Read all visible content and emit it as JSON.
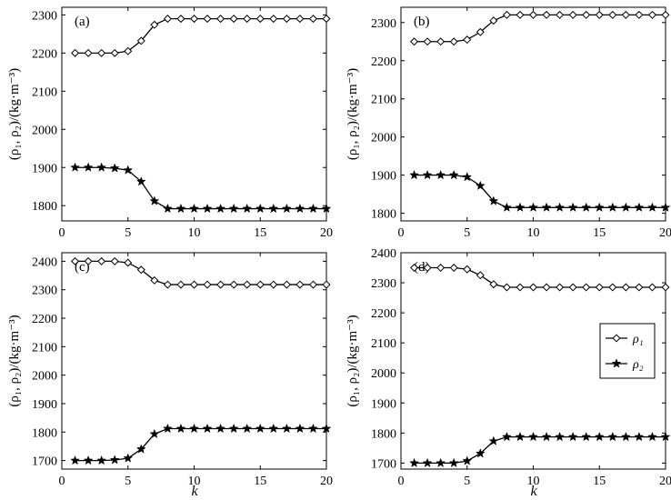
{
  "chart_data": [
    {
      "type": "line",
      "panel_label": "(a)",
      "ylabel": "(ρ₁, ρ₂)/(kg·m⁻³)",
      "xlabel": "",
      "xlim": [
        0,
        20
      ],
      "ylim": [
        1760,
        2320
      ],
      "xticks": [
        0,
        5,
        10,
        15,
        20
      ],
      "yticks": [
        1800,
        1900,
        2000,
        2100,
        2200,
        2300
      ],
      "x": [
        1,
        2,
        3,
        4,
        5,
        6,
        7,
        8,
        9,
        10,
        11,
        12,
        13,
        14,
        15,
        16,
        17,
        18,
        19,
        20
      ],
      "series": [
        {
          "key": "rho1",
          "marker": "diamond",
          "values": [
            2200,
            2200,
            2200,
            2200,
            2205,
            2232,
            2274,
            2290,
            2290,
            2290,
            2290,
            2290,
            2290,
            2290,
            2290,
            2290,
            2290,
            2290,
            2290,
            2290
          ]
        },
        {
          "key": "rho2",
          "marker": "star",
          "values": [
            1900,
            1900,
            1900,
            1898,
            1893,
            1863,
            1812,
            1792,
            1792,
            1792,
            1792,
            1792,
            1792,
            1792,
            1792,
            1792,
            1792,
            1792,
            1792,
            1792
          ]
        }
      ]
    },
    {
      "type": "line",
      "panel_label": "(b)",
      "ylabel": "(ρ₁, ρ₂)/(kg·m⁻³)",
      "xlabel": "",
      "xlim": [
        0,
        20
      ],
      "ylim": [
        1780,
        2340
      ],
      "xticks": [
        0,
        5,
        10,
        15,
        20
      ],
      "yticks": [
        1800,
        1900,
        2000,
        2100,
        2200,
        2300
      ],
      "x": [
        1,
        2,
        3,
        4,
        5,
        6,
        7,
        8,
        9,
        10,
        11,
        12,
        13,
        14,
        15,
        16,
        17,
        18,
        19,
        20
      ],
      "series": [
        {
          "key": "rho1",
          "marker": "diamond",
          "values": [
            2250,
            2250,
            2250,
            2250,
            2255,
            2275,
            2305,
            2320,
            2320,
            2320,
            2320,
            2320,
            2320,
            2320,
            2320,
            2320,
            2320,
            2320,
            2320,
            2320
          ]
        },
        {
          "key": "rho2",
          "marker": "star",
          "values": [
            1900,
            1900,
            1900,
            1900,
            1895,
            1872,
            1832,
            1815,
            1815,
            1815,
            1815,
            1815,
            1815,
            1815,
            1815,
            1815,
            1815,
            1815,
            1815,
            1815
          ]
        }
      ]
    },
    {
      "type": "line",
      "panel_label": "(c)",
      "ylabel": "(ρ₁, ρ₂)/(kg·m⁻³)",
      "xlabel": "",
      "xlim": [
        0,
        20
      ],
      "ylim": [
        1670,
        2430
      ],
      "xticks": [
        0,
        5,
        10,
        15,
        20
      ],
      "yticks": [
        1700,
        1800,
        1900,
        2000,
        2100,
        2200,
        2300,
        2400
      ],
      "x": [
        1,
        2,
        3,
        4,
        5,
        6,
        7,
        8,
        9,
        10,
        11,
        12,
        13,
        14,
        15,
        16,
        17,
        18,
        19,
        20
      ],
      "series": [
        {
          "key": "rho1",
          "marker": "diamond",
          "values": [
            2400,
            2400,
            2400,
            2400,
            2395,
            2370,
            2333,
            2318,
            2318,
            2318,
            2318,
            2318,
            2318,
            2318,
            2318,
            2318,
            2318,
            2318,
            2318,
            2318
          ]
        },
        {
          "key": "rho2",
          "marker": "star",
          "values": [
            1700,
            1700,
            1700,
            1702,
            1708,
            1740,
            1793,
            1812,
            1812,
            1812,
            1812,
            1812,
            1812,
            1812,
            1812,
            1812,
            1812,
            1812,
            1812,
            1812
          ]
        }
      ]
    },
    {
      "type": "line",
      "panel_label": "(d)",
      "xlabel": "",
      "ylabel": "(ρ₁, ρ₂)/(kg·m⁻³)",
      "xlim": [
        0,
        20
      ],
      "ylim": [
        1680,
        2400
      ],
      "xticks": [
        0,
        5,
        10,
        15,
        20
      ],
      "yticks": [
        1700,
        1800,
        1900,
        2000,
        2100,
        2200,
        2300,
        2400
      ],
      "x": [
        1,
        2,
        3,
        4,
        5,
        6,
        7,
        8,
        9,
        10,
        11,
        12,
        13,
        14,
        15,
        16,
        17,
        18,
        19,
        20
      ],
      "legend": {
        "placement": "right",
        "entries": [
          {
            "key": "rho1",
            "label": "ρ₁"
          },
          {
            "key": "rho2",
            "label": "ρ₂"
          }
        ]
      },
      "series": [
        {
          "key": "rho1",
          "marker": "diamond",
          "values": [
            2350,
            2350,
            2350,
            2350,
            2345,
            2325,
            2295,
            2285,
            2285,
            2285,
            2285,
            2285,
            2285,
            2285,
            2285,
            2285,
            2285,
            2285,
            2285,
            2285
          ]
        },
        {
          "key": "rho2",
          "marker": "star",
          "values": [
            1700,
            1700,
            1700,
            1700,
            1707,
            1732,
            1773,
            1787,
            1787,
            1787,
            1787,
            1787,
            1787,
            1787,
            1787,
            1787,
            1787,
            1787,
            1787,
            1787
          ]
        }
      ]
    }
  ],
  "shared_xlabel": "k"
}
